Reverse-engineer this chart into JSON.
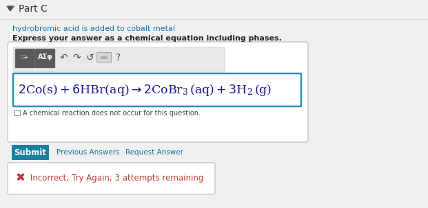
{
  "bg_color": "#f0f0f0",
  "white": "#ffffff",
  "part_c_text": "Part C",
  "part_c_color": "#333333",
  "description_text": "hydrobromic acid is added to cobalt metal",
  "description_color": "#1a73a7",
  "instruction_text": "Express your answer as a chemical equation including phases.",
  "instruction_color": "#222222",
  "equation_color": "#1a1a8c",
  "checkbox_text": "A chemical reaction does not occur for this question.",
  "checkbox_color": "#444444",
  "submit_text": "Submit",
  "submit_bg": "#1a7fa0",
  "submit_text_color": "#ffffff",
  "prev_answers_text": "Previous Answers",
  "link_color": "#1a73a7",
  "request_answer_text": "Request Answer",
  "incorrect_text": "Incorrect; Try Again; 3 attempts remaining",
  "incorrect_color": "#c0392b",
  "input_border": "#2a8fb0",
  "box_border": "#bbbbbb",
  "toolbar_bg": "#e8e8e8",
  "btn_dark": "#555555",
  "icon_color": "#555555"
}
